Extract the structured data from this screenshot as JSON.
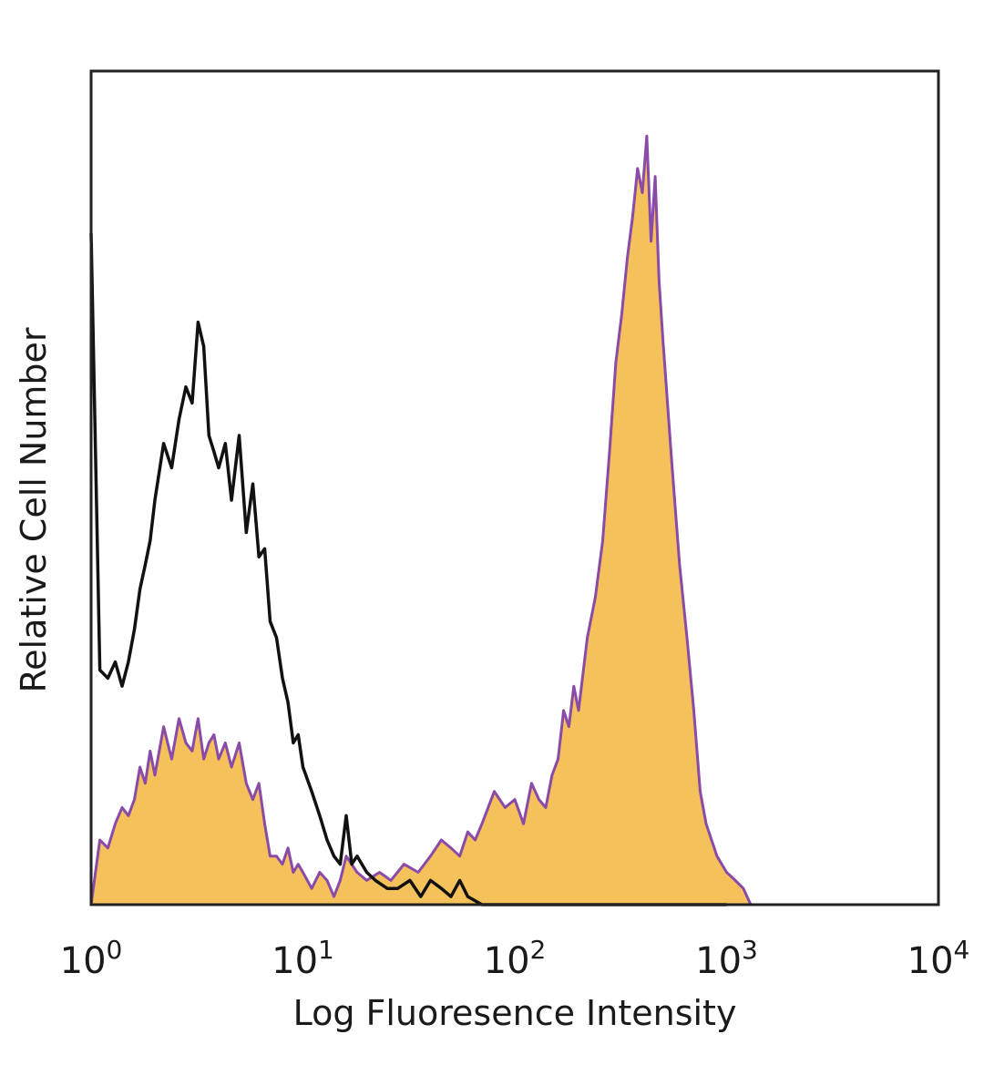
{
  "chart_data": {
    "type": "area",
    "title": "",
    "xlabel": "Log Fluoresence Intensity",
    "ylabel": "Relative Cell Number",
    "x_scale": "log",
    "xlim": [
      1,
      10000
    ],
    "ylim": [
      0,
      1
    ],
    "grid": false,
    "legend": "none",
    "x_ticks": [
      {
        "base": "10",
        "exp": "0"
      },
      {
        "base": "10",
        "exp": "1"
      },
      {
        "base": "10",
        "exp": "2"
      },
      {
        "base": "10",
        "exp": "3"
      },
      {
        "base": "10",
        "exp": "4"
      }
    ],
    "series": [
      {
        "style": "line",
        "color": "#111111",
        "x": [
          1.0,
          1.1,
          1.2,
          1.3,
          1.4,
          1.5,
          1.6,
          1.7,
          1.8,
          1.9,
          2.0,
          2.2,
          2.4,
          2.6,
          2.8,
          3.0,
          3.2,
          3.4,
          3.6,
          3.8,
          4.0,
          4.3,
          4.6,
          5.0,
          5.4,
          5.8,
          6.2,
          6.6,
          7.0,
          7.5,
          8.0,
          8.5,
          9.0,
          9.5,
          10.0,
          11.0,
          12.0,
          13.0,
          14.0,
          15.0,
          16.0,
          17.0,
          18.0,
          20.0,
          22.0,
          25.0,
          28.0,
          32.0,
          36.0,
          40.0,
          45.0,
          50.0,
          55.0,
          60.0,
          70.0,
          100.0,
          200.0,
          400.0,
          700.0,
          1000.0
        ],
        "values": [
          0.83,
          0.29,
          0.28,
          0.3,
          0.27,
          0.3,
          0.34,
          0.39,
          0.42,
          0.45,
          0.5,
          0.57,
          0.54,
          0.6,
          0.64,
          0.62,
          0.72,
          0.69,
          0.58,
          0.56,
          0.54,
          0.57,
          0.5,
          0.58,
          0.46,
          0.52,
          0.43,
          0.44,
          0.35,
          0.33,
          0.28,
          0.25,
          0.2,
          0.21,
          0.17,
          0.14,
          0.11,
          0.08,
          0.06,
          0.05,
          0.11,
          0.05,
          0.06,
          0.04,
          0.03,
          0.02,
          0.02,
          0.03,
          0.01,
          0.03,
          0.02,
          0.01,
          0.03,
          0.01,
          0.0,
          0.0,
          0.0,
          0.0,
          0.0,
          0.0
        ]
      },
      {
        "style": "filled",
        "color": "#f5c15a",
        "edge_color": "#8a4aa8",
        "x": [
          1.0,
          1.1,
          1.2,
          1.3,
          1.4,
          1.5,
          1.6,
          1.7,
          1.8,
          1.9,
          2.0,
          2.2,
          2.4,
          2.6,
          2.8,
          3.0,
          3.2,
          3.4,
          3.6,
          3.8,
          4.0,
          4.3,
          4.6,
          5.0,
          5.4,
          5.8,
          6.2,
          6.6,
          7.0,
          7.5,
          8.0,
          8.5,
          9.0,
          9.5,
          10.0,
          11.0,
          12.0,
          13.0,
          14.0,
          15.0,
          16.0,
          18.0,
          20.0,
          23.0,
          26.0,
          30.0,
          35.0,
          40.0,
          45.0,
          50.0,
          55.0,
          60.0,
          65.0,
          70.0,
          80.0,
          90.0,
          100.0,
          110.0,
          120.0,
          130.0,
          140.0,
          150.0,
          160.0,
          170.0,
          180.0,
          190.0,
          200.0,
          220.0,
          240.0,
          260.0,
          280.0,
          300.0,
          320.0,
          340.0,
          360.0,
          380.0,
          400.0,
          420.0,
          440.0,
          460.0,
          480.0,
          500.0,
          550.0,
          600.0,
          650.0,
          700.0,
          750.0,
          800.0,
          900.0,
          1000.0,
          1100.0,
          1200.0,
          1300.0
        ],
        "values": [
          0.0,
          0.08,
          0.07,
          0.1,
          0.12,
          0.11,
          0.13,
          0.17,
          0.15,
          0.19,
          0.16,
          0.22,
          0.18,
          0.23,
          0.2,
          0.19,
          0.23,
          0.18,
          0.2,
          0.21,
          0.18,
          0.2,
          0.17,
          0.2,
          0.15,
          0.13,
          0.15,
          0.1,
          0.06,
          0.06,
          0.05,
          0.07,
          0.04,
          0.05,
          0.04,
          0.02,
          0.04,
          0.03,
          0.01,
          0.03,
          0.06,
          0.04,
          0.03,
          0.04,
          0.03,
          0.05,
          0.04,
          0.06,
          0.08,
          0.07,
          0.06,
          0.09,
          0.08,
          0.1,
          0.14,
          0.12,
          0.13,
          0.1,
          0.15,
          0.13,
          0.12,
          0.16,
          0.18,
          0.24,
          0.22,
          0.27,
          0.24,
          0.33,
          0.38,
          0.45,
          0.56,
          0.67,
          0.73,
          0.8,
          0.85,
          0.91,
          0.88,
          0.95,
          0.82,
          0.9,
          0.77,
          0.7,
          0.55,
          0.42,
          0.33,
          0.24,
          0.14,
          0.1,
          0.06,
          0.04,
          0.03,
          0.02,
          0.0
        ]
      }
    ]
  }
}
